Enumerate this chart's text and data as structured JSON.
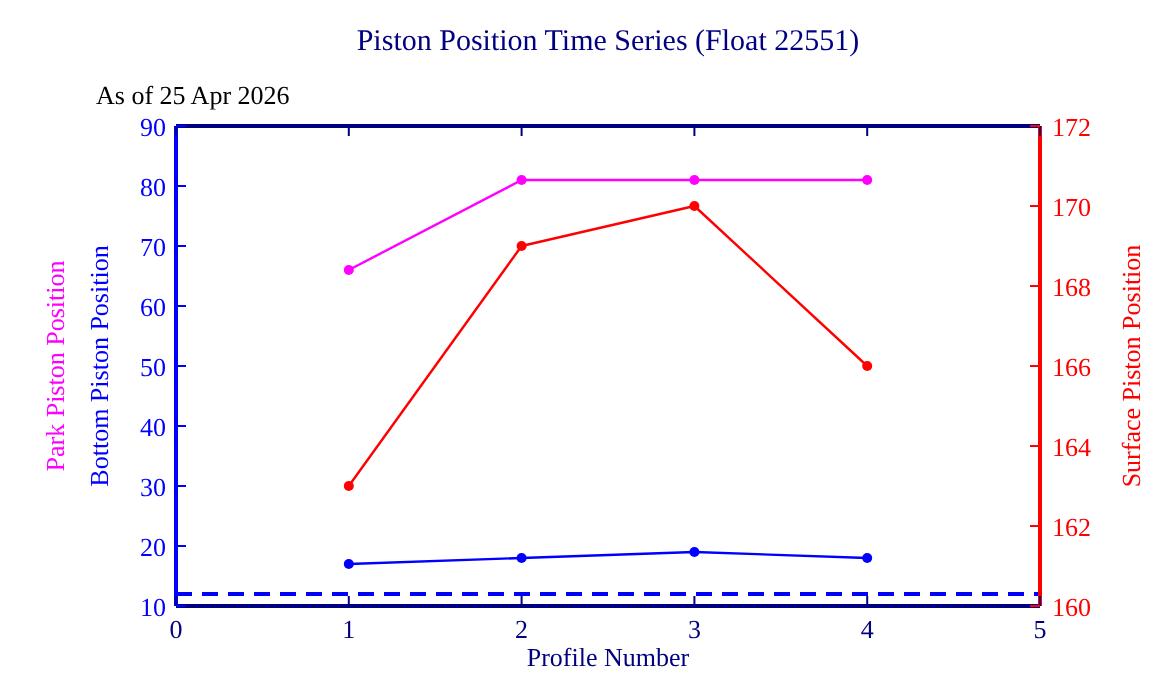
{
  "chart_data": {
    "type": "line",
    "title": "Piston Position Time Series (Float 22551)",
    "subtitle": "As of 25 Apr 2026",
    "xlabel": "Profile Number",
    "ylabel": "Bottom Piston Position",
    "y2label": "Surface Piston Position",
    "x": [
      1,
      2,
      3,
      4
    ],
    "xlim": [
      0,
      5
    ],
    "xticks": [
      0,
      1,
      2,
      3,
      4,
      5
    ],
    "ylim": [
      10,
      90
    ],
    "yticks": [
      10,
      20,
      30,
      40,
      50,
      60,
      70,
      80,
      90
    ],
    "y2lim": [
      160,
      172
    ],
    "y2ticks": [
      160,
      162,
      164,
      166,
      168,
      170,
      172
    ],
    "series": [
      {
        "name": "Park Piston Position",
        "color": "#ff00ff",
        "values": [
          66,
          81,
          81,
          81
        ]
      },
      {
        "color": "#0000ff",
        "values": [
          17,
          18,
          19,
          18
        ]
      },
      {
        "color": "#ff0000",
        "values": [
          163,
          169,
          170,
          166
        ],
        "axis": "y2"
      }
    ],
    "ref_lines": [
      {
        "axis": "y",
        "value": 12,
        "color": "#0000ff",
        "line_style": "dashed"
      }
    ],
    "marker": "circle",
    "grid": false
  }
}
